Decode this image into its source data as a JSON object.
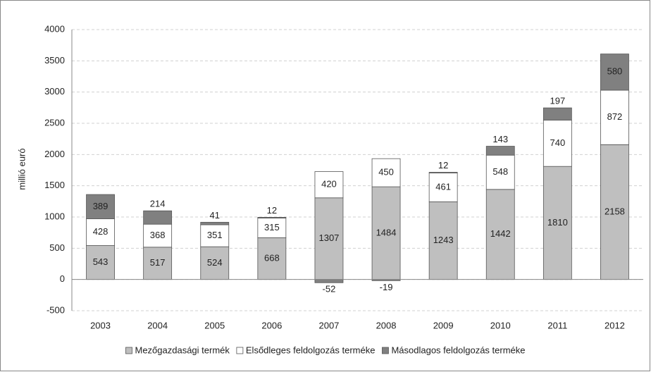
{
  "chart_data": {
    "type": "stacked_bar",
    "y_label": "millió euró",
    "categories": [
      "2003",
      "2004",
      "2005",
      "2006",
      "2007",
      "2008",
      "2009",
      "2010",
      "2011",
      "2012"
    ],
    "series": [
      {
        "name": "Mezőgazdasági termék",
        "color": "#bfbfbf",
        "values": [
          543,
          517,
          524,
          668,
          1307,
          1484,
          1243,
          1442,
          1810,
          2158
        ]
      },
      {
        "name": "Elsődleges feldolgozás terméke",
        "color": "#ffffff",
        "values": [
          428,
          368,
          351,
          315,
          420,
          450,
          461,
          548,
          740,
          872
        ]
      },
      {
        "name": "Másodlagos feldolgozás terméke",
        "color": "#808080",
        "values": [
          389,
          214,
          41,
          12,
          -52,
          -19,
          12,
          143,
          197,
          580
        ]
      }
    ],
    "ylim": [
      -500,
      4000
    ],
    "yticks": [
      -500,
      0,
      500,
      1000,
      1500,
      2000,
      2500,
      3000,
      3500,
      4000
    ],
    "grid": true,
    "legend": "bottom"
  }
}
